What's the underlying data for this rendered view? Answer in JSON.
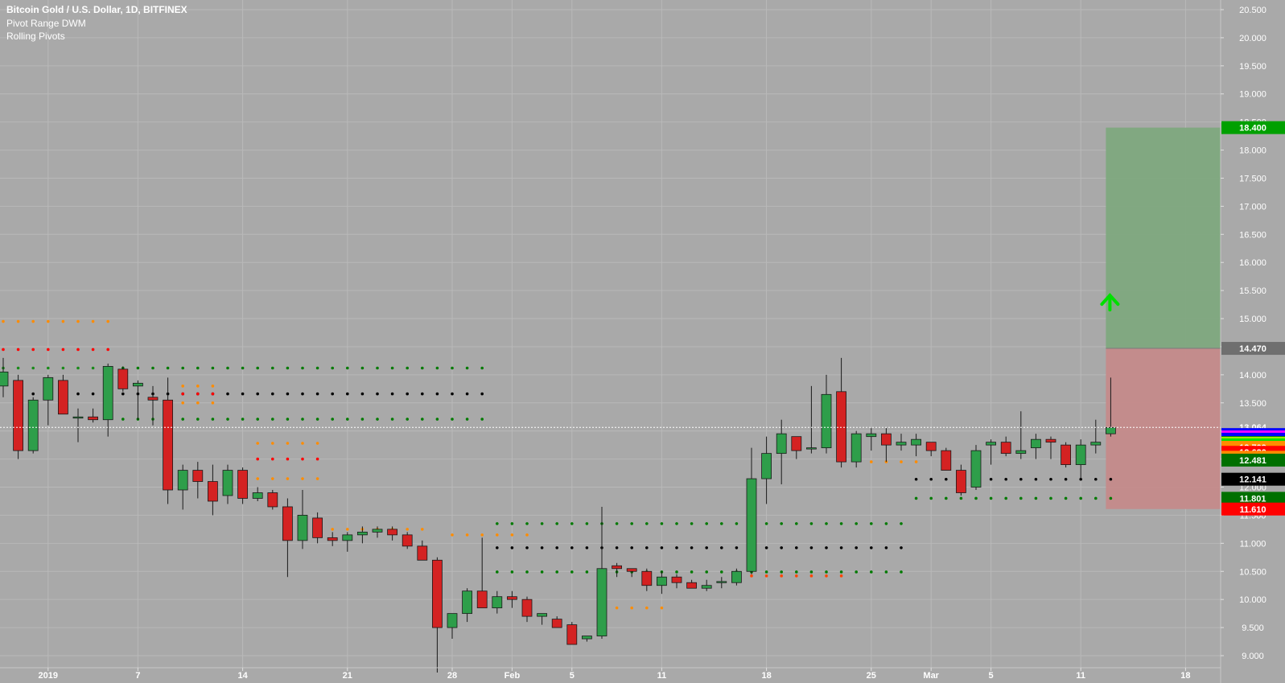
{
  "legend": {
    "title": "Bitcoin Gold / U.S. Dollar, 1D, BITFINEX",
    "indicator_1": "Pivot Range DWM",
    "indicator_2": "Rolling Pivots"
  },
  "colors": {
    "background": "#a9a9a9",
    "grid": "#b9b9b9",
    "up_candle": "#2e9e4a",
    "down_candle": "#d42222",
    "profit_zone": "#7ea87e",
    "loss_zone": "#c48a8a",
    "target_arrow": "#00e000"
  },
  "chart_data": {
    "type": "candlestick",
    "title": "Bitcoin Gold / U.S. Dollar, 1D, BITFINEX",
    "ylim": [
      8.7,
      20.7
    ],
    "y_ticks": [
      "20.500",
      "20.000",
      "19.500",
      "19.000",
      "18.500",
      "18.000",
      "17.500",
      "17.000",
      "16.500",
      "16.000",
      "15.500",
      "15.000",
      "14.500",
      "14.000",
      "13.500",
      "13.000",
      "12.500",
      "12.000",
      "11.500",
      "11.000",
      "10.500",
      "10.000",
      "9.500",
      "9.000"
    ],
    "x_ticks": [
      {
        "label": "2019",
        "day": 3
      },
      {
        "label": "7",
        "day": 9
      },
      {
        "label": "14",
        "day": 16
      },
      {
        "label": "21",
        "day": 23
      },
      {
        "label": "28",
        "day": 30
      },
      {
        "label": "Feb",
        "day": 34
      },
      {
        "label": "5",
        "day": 38
      },
      {
        "label": "11",
        "day": 44
      },
      {
        "label": "18",
        "day": 51
      },
      {
        "label": "25",
        "day": 58
      },
      {
        "label": "Mar",
        "day": 62
      },
      {
        "label": "5",
        "day": 66
      },
      {
        "label": "11",
        "day": 72
      },
      {
        "label": "18",
        "day": 79
      }
    ],
    "ohlc": [
      [
        13.8,
        14.3,
        13.6,
        14.05
      ],
      [
        13.9,
        14.0,
        12.5,
        12.65
      ],
      [
        12.65,
        13.6,
        12.6,
        13.55
      ],
      [
        13.55,
        14.0,
        13.1,
        13.95
      ],
      [
        13.9,
        14.0,
        13.3,
        13.3
      ],
      [
        13.25,
        13.4,
        12.8,
        13.25
      ],
      [
        13.25,
        13.4,
        13.15,
        13.2
      ],
      [
        13.2,
        14.2,
        12.9,
        14.15
      ],
      [
        14.1,
        14.15,
        13.7,
        13.75
      ],
      [
        13.8,
        13.9,
        13.2,
        13.85
      ],
      [
        13.6,
        13.8,
        13.1,
        13.55
      ],
      [
        13.55,
        13.95,
        11.7,
        11.95
      ],
      [
        11.95,
        12.4,
        11.6,
        12.3
      ],
      [
        12.3,
        12.45,
        11.8,
        12.1
      ],
      [
        12.1,
        12.4,
        11.5,
        11.75
      ],
      [
        11.85,
        12.4,
        11.7,
        12.3
      ],
      [
        12.3,
        12.35,
        11.7,
        11.8
      ],
      [
        11.8,
        12.0,
        11.75,
        11.9
      ],
      [
        11.9,
        11.95,
        11.6,
        11.65
      ],
      [
        11.65,
        11.8,
        10.4,
        11.05
      ],
      [
        11.05,
        11.95,
        10.9,
        11.5
      ],
      [
        11.45,
        11.55,
        11.0,
        11.1
      ],
      [
        11.1,
        11.2,
        10.95,
        11.05
      ],
      [
        11.05,
        11.2,
        10.85,
        11.15
      ],
      [
        11.15,
        11.3,
        11.0,
        11.2
      ],
      [
        11.2,
        11.3,
        11.1,
        11.25
      ],
      [
        11.25,
        11.3,
        11.05,
        11.15
      ],
      [
        11.15,
        11.2,
        10.9,
        10.95
      ],
      [
        10.95,
        11.05,
        10.75,
        10.7
      ],
      [
        10.7,
        10.75,
        8.7,
        9.5
      ],
      [
        9.5,
        9.75,
        9.3,
        9.75
      ],
      [
        9.75,
        10.2,
        9.6,
        10.15
      ],
      [
        10.15,
        11.1,
        9.9,
        9.85
      ],
      [
        9.85,
        10.15,
        9.75,
        10.05
      ],
      [
        10.05,
        10.15,
        9.85,
        10.0
      ],
      [
        10.0,
        10.05,
        9.6,
        9.7
      ],
      [
        9.7,
        9.75,
        9.55,
        9.75
      ],
      [
        9.65,
        9.7,
        9.5,
        9.5
      ],
      [
        9.55,
        9.6,
        9.2,
        9.2
      ],
      [
        9.3,
        9.35,
        9.25,
        9.35
      ],
      [
        9.35,
        11.65,
        9.3,
        10.55
      ],
      [
        10.6,
        10.65,
        10.4,
        10.55
      ],
      [
        10.55,
        10.55,
        10.4,
        10.5
      ],
      [
        10.5,
        10.55,
        10.15,
        10.25
      ],
      [
        10.25,
        10.5,
        10.1,
        10.4
      ],
      [
        10.4,
        10.45,
        10.2,
        10.3
      ],
      [
        10.3,
        10.35,
        10.2,
        10.2
      ],
      [
        10.2,
        10.35,
        10.15,
        10.25
      ],
      [
        10.3,
        10.4,
        10.2,
        10.32
      ],
      [
        10.3,
        10.55,
        10.25,
        10.5
      ],
      [
        10.5,
        12.7,
        10.45,
        12.15
      ],
      [
        12.15,
        12.9,
        11.7,
        12.6
      ],
      [
        12.6,
        13.2,
        12.05,
        12.95
      ],
      [
        12.9,
        12.9,
        12.5,
        12.65
      ],
      [
        12.7,
        13.8,
        12.6,
        12.7
      ],
      [
        12.7,
        14.0,
        12.6,
        13.65
      ],
      [
        13.7,
        14.3,
        12.35,
        12.45
      ],
      [
        12.45,
        13.0,
        12.35,
        12.95
      ],
      [
        12.9,
        13.05,
        12.65,
        12.95
      ],
      [
        12.95,
        13.05,
        12.45,
        12.75
      ],
      [
        12.75,
        12.95,
        12.65,
        12.8
      ],
      [
        12.75,
        12.95,
        12.55,
        12.85
      ],
      [
        12.8,
        12.8,
        12.55,
        12.65
      ],
      [
        12.65,
        12.7,
        12.3,
        12.3
      ],
      [
        12.3,
        12.4,
        11.85,
        11.9
      ],
      [
        12.0,
        12.75,
        11.95,
        12.65
      ],
      [
        12.75,
        12.85,
        12.4,
        12.8
      ],
      [
        12.8,
        12.9,
        12.55,
        12.6
      ],
      [
        12.6,
        13.35,
        12.5,
        12.65
      ],
      [
        12.7,
        12.95,
        12.5,
        12.85
      ],
      [
        12.85,
        12.9,
        12.5,
        12.8
      ],
      [
        12.75,
        12.8,
        12.35,
        12.4
      ],
      [
        12.4,
        12.85,
        12.15,
        12.75
      ],
      [
        12.75,
        13.2,
        12.6,
        12.8
      ],
      [
        12.95,
        13.95,
        12.9,
        13.06
      ]
    ],
    "last_price": 13.064,
    "position": {
      "entry": 14.47,
      "target": 18.4,
      "stop": 11.61
    },
    "pivot_levels": [
      {
        "from": 0,
        "to": 7,
        "value": 14.95,
        "color": "#ff8c00"
      },
      {
        "from": 0,
        "to": 7,
        "value": 14.45,
        "color": "#ff0000"
      },
      {
        "from": 0,
        "to": 7,
        "value": 14.12,
        "color": "#1a8a1a"
      },
      {
        "from": 8,
        "to": 32,
        "value": 14.12,
        "color": "#007a00"
      },
      {
        "from": 2,
        "to": 32,
        "value": 13.66,
        "color": "#000000"
      },
      {
        "from": 8,
        "to": 32,
        "value": 13.21,
        "color": "#007a00"
      },
      {
        "from": 12,
        "to": 14,
        "value": 13.66,
        "color": "#ff0000"
      },
      {
        "from": 12,
        "to": 14,
        "value": 13.8,
        "color": "#ff8c00"
      },
      {
        "from": 12,
        "to": 14,
        "value": 13.5,
        "color": "#ff8c00"
      },
      {
        "from": 17,
        "to": 21,
        "value": 12.78,
        "color": "#ff8c00"
      },
      {
        "from": 17,
        "to": 21,
        "value": 12.5,
        "color": "#ff0000"
      },
      {
        "from": 17,
        "to": 21,
        "value": 12.15,
        "color": "#ff8c00"
      },
      {
        "from": 21,
        "to": 28,
        "value": 11.25,
        "color": "#ff8c00"
      },
      {
        "from": 30,
        "to": 35,
        "value": 11.15,
        "color": "#ff8c00"
      },
      {
        "from": 33,
        "to": 60,
        "value": 11.35,
        "color": "#007a00"
      },
      {
        "from": 33,
        "to": 60,
        "value": 10.92,
        "color": "#000000"
      },
      {
        "from": 33,
        "to": 60,
        "value": 10.49,
        "color": "#007a00"
      },
      {
        "from": 41,
        "to": 44,
        "value": 9.85,
        "color": "#ff8c00"
      },
      {
        "from": 50,
        "to": 56,
        "value": 10.42,
        "color": "#ff4500"
      },
      {
        "from": 58,
        "to": 61,
        "value": 12.45,
        "color": "#ff8c00"
      },
      {
        "from": 61,
        "to": 74,
        "value": 12.14,
        "color": "#000000"
      },
      {
        "from": 61,
        "to": 74,
        "value": 11.8,
        "color": "#007a00"
      }
    ],
    "badges": [
      {
        "value": "18.400",
        "price": 18.4,
        "bg": "#00a000",
        "fg": "#ffffff"
      },
      {
        "value": "14.470",
        "price": 14.47,
        "bg": "#6f6f6f",
        "fg": "#ffffff"
      },
      {
        "value": "13.064",
        "price": 13.064,
        "bg": "#a9a9a9",
        "fg": "#ffffff"
      },
      {
        "value": "12.936",
        "price": 12.936,
        "bg": "#0000ff",
        "fg": "#ffffff"
      },
      {
        "value": "12.894",
        "price": 12.894,
        "bg": "#ff00ff",
        "fg": "#ffffff"
      },
      {
        "value": "12.853",
        "price": 12.853,
        "bg": "#0000ff",
        "fg": "#ffffff"
      },
      {
        "value": "12.794",
        "price": 12.794,
        "bg": "#009000",
        "fg": "#ffffff"
      },
      {
        "value": "12.776",
        "price": 12.776,
        "bg": "#ffff00",
        "fg": "#000000"
      },
      {
        "value": "12.758",
        "price": 12.758,
        "bg": "#00e000",
        "fg": "#000000"
      },
      {
        "value": "12.709",
        "price": 12.709,
        "bg": "#ff8c00",
        "fg": "#ffffff"
      },
      {
        "value": "12.620",
        "price": 12.62,
        "bg": "#ff0000",
        "fg": "#ffffff"
      },
      {
        "value": "12.532",
        "price": 12.532,
        "bg": "#ff8c00",
        "fg": "#ffffff"
      },
      {
        "value": "12.481",
        "price": 12.481,
        "bg": "#007000",
        "fg": "#ffffff"
      },
      {
        "value": "12.141",
        "price": 12.141,
        "bg": "#000000",
        "fg": "#ffffff"
      },
      {
        "value": "11.801",
        "price": 11.801,
        "bg": "#007000",
        "fg": "#ffffff"
      },
      {
        "value": "11.610",
        "price": 11.61,
        "bg": "#ff0000",
        "fg": "#ffffff"
      }
    ]
  }
}
